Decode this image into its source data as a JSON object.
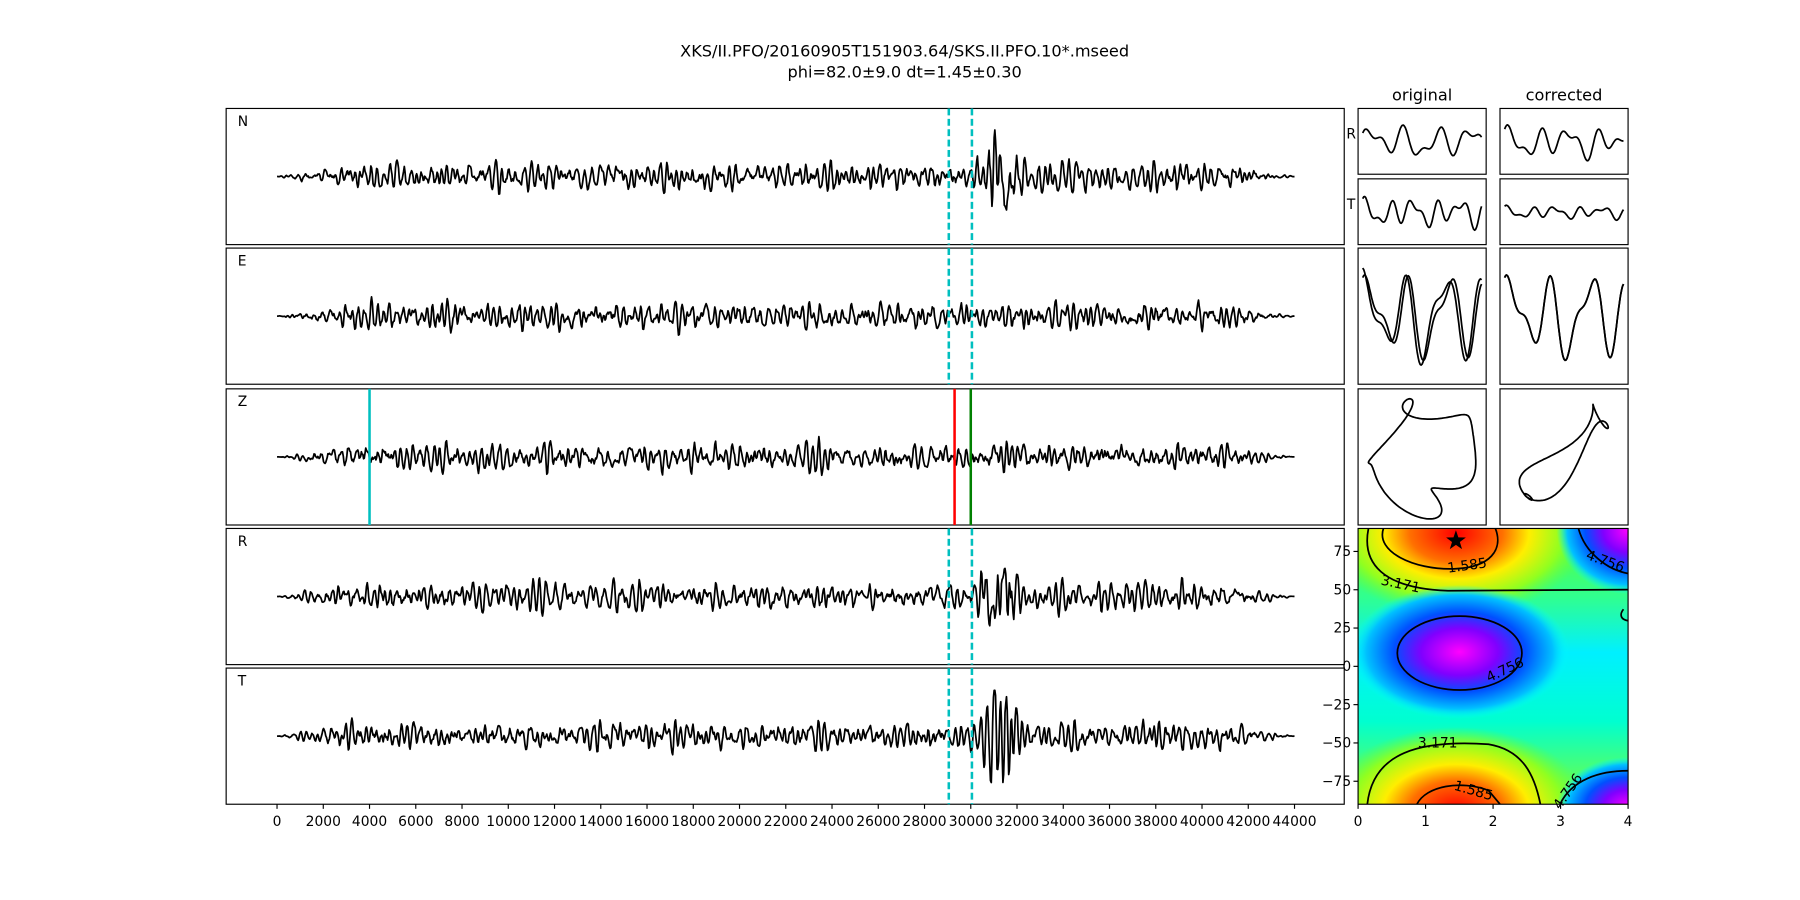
{
  "title": "XKS/II.PFO/20160905T151903.64/SKS.II.PFO.10*.mseed",
  "subtitle": "phi=82.0±9.0 dt=1.45±0.30",
  "traces": {
    "channels": [
      "N",
      "E",
      "Z",
      "R",
      "T"
    ],
    "xlim": [
      -2200,
      46150
    ],
    "xticks": [
      0,
      2000,
      4000,
      6000,
      8000,
      10000,
      12000,
      14000,
      16000,
      18000,
      20000,
      22000,
      24000,
      26000,
      28000,
      30000,
      32000,
      34000,
      36000,
      38000,
      40000,
      42000,
      44000
    ],
    "window": [
      29050,
      30050
    ],
    "window_color": "#00bfbf",
    "picks": [
      {
        "x": 4000,
        "color": "#00bfbf"
      },
      {
        "x": 29300,
        "color": "#ff0000"
      },
      {
        "x": 30000,
        "color": "#008000"
      }
    ]
  },
  "particle_motion": {
    "columns": [
      "original",
      "corrected"
    ],
    "rows": [
      "R",
      "T"
    ]
  },
  "error_surface": {
    "xlim": [
      0,
      4
    ],
    "ylim": [
      -90,
      90
    ],
    "xticks": [
      0,
      1,
      2,
      3,
      4
    ],
    "yticks": [
      {
        "value": 75,
        "label": "75"
      },
      {
        "value": 50,
        "label": "50"
      },
      {
        "value": 25,
        "label": "25"
      },
      {
        "value": 0,
        "label": "0"
      },
      {
        "value": -25,
        "label": "−25"
      },
      {
        "value": -50,
        "label": "−50"
      },
      {
        "value": -75,
        "label": "−75"
      }
    ],
    "best": {
      "dt": 1.45,
      "phi": 82.0
    },
    "contour_levels": [
      1.585,
      3.171,
      4.756
    ]
  }
}
